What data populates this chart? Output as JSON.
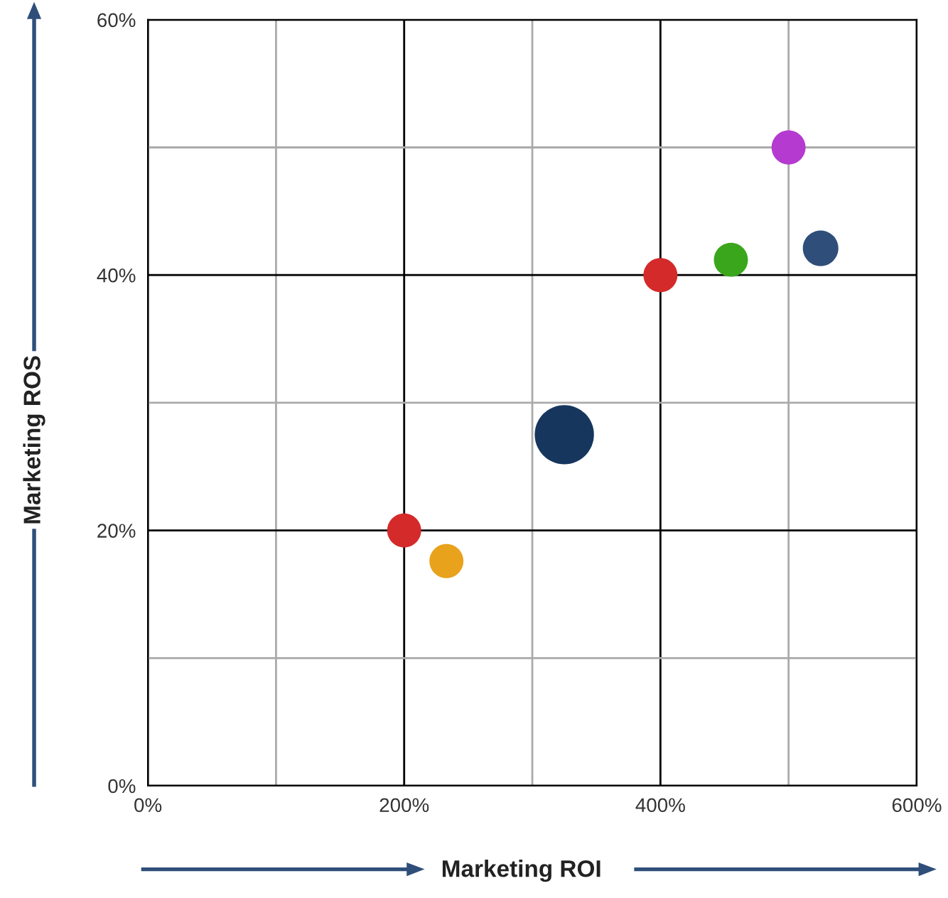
{
  "chart_data": {
    "type": "bubble",
    "xlabel": "Marketing ROI",
    "ylabel": "Marketing ROS",
    "x": [
      200,
      233,
      325,
      400,
      455,
      500,
      525
    ],
    "values": [
      20,
      17.6,
      27.5,
      40,
      41.2,
      50,
      42.1
    ],
    "sizes": [
      0.33,
      0.33,
      1,
      0.33,
      0.33,
      0.33,
      0.36
    ],
    "colors": [
      "#d42a2a",
      "#e8a21c",
      "#16365e",
      "#d42a2a",
      "#3aa61c",
      "#b43ad0",
      "#2f4f7a"
    ],
    "xlim": [
      0,
      600
    ],
    "ylim": [
      0,
      60
    ],
    "xticks": [
      {
        "value": 0,
        "label": "0%"
      },
      {
        "value": 100,
        "label": null
      },
      {
        "value": 200,
        "label": "200%"
      },
      {
        "value": 300,
        "label": null
      },
      {
        "value": 400,
        "label": "400%"
      },
      {
        "value": 500,
        "label": null
      },
      {
        "value": 600,
        "label": "600%"
      }
    ],
    "yticks": [
      {
        "value": 0,
        "label": "0%"
      },
      {
        "value": 10,
        "label": null
      },
      {
        "value": 20,
        "label": "20%"
      },
      {
        "value": 30,
        "label": null
      },
      {
        "value": 40,
        "label": "40%"
      },
      {
        "value": 50,
        "label": null
      },
      {
        "value": 60,
        "label": "60%"
      }
    ],
    "grid": true
  }
}
